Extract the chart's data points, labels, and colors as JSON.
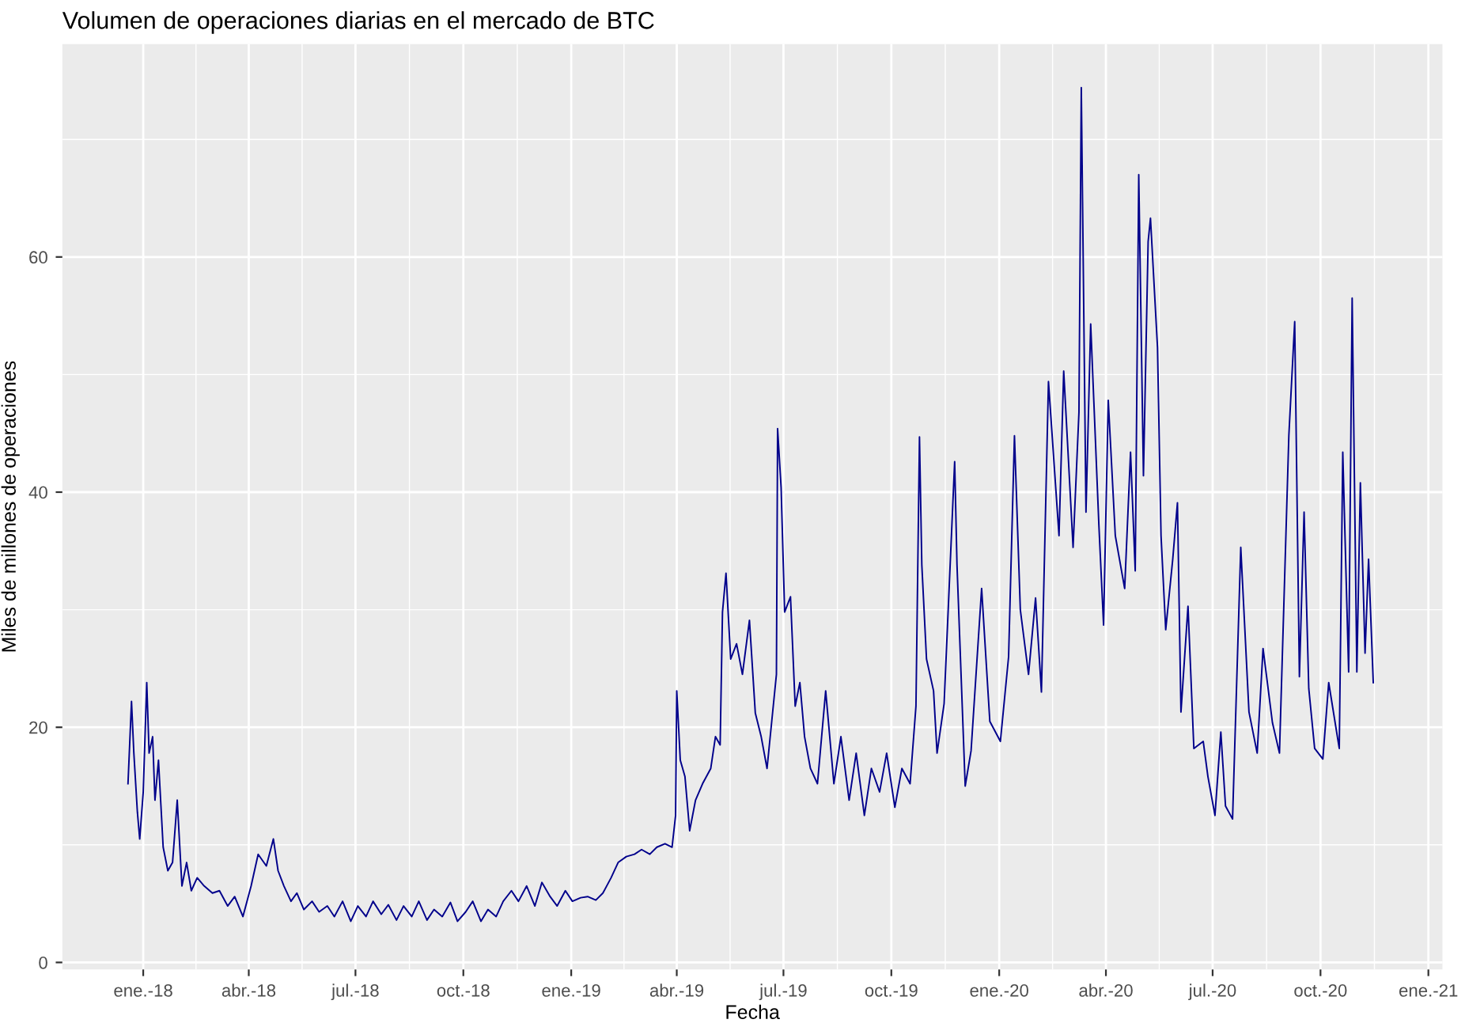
{
  "chart_data": {
    "type": "line",
    "title": "Volumen de operaciones diarias en el mercado de BTC",
    "xlabel": "Fecha",
    "ylabel": "Miles de millones de operaciones",
    "x": [
      "2017-12-19",
      "2017-12-22",
      "2017-12-24",
      "2017-12-27",
      "2017-12-29",
      "2018-01-01",
      "2018-01-04",
      "2018-01-06",
      "2018-01-09",
      "2018-01-11",
      "2018-01-14",
      "2018-01-18",
      "2018-01-22",
      "2018-01-26",
      "2018-01-30",
      "2018-02-03",
      "2018-02-07",
      "2018-02-11",
      "2018-02-16",
      "2018-02-22",
      "2018-03-01",
      "2018-03-07",
      "2018-03-14",
      "2018-03-20",
      "2018-03-27",
      "2018-04-03",
      "2018-04-09",
      "2018-04-16",
      "2018-04-22",
      "2018-04-26",
      "2018-05-01",
      "2018-05-07",
      "2018-05-12",
      "2018-05-18",
      "2018-05-25",
      "2018-05-31",
      "2018-06-07",
      "2018-06-13",
      "2018-06-20",
      "2018-06-27",
      "2018-07-03",
      "2018-07-10",
      "2018-07-16",
      "2018-07-23",
      "2018-07-29",
      "2018-08-05",
      "2018-08-11",
      "2018-08-18",
      "2018-08-24",
      "2018-08-31",
      "2018-09-06",
      "2018-09-13",
      "2018-09-20",
      "2018-09-26",
      "2018-10-03",
      "2018-10-09",
      "2018-10-16",
      "2018-10-22",
      "2018-10-29",
      "2018-11-04",
      "2018-11-11",
      "2018-11-17",
      "2018-11-24",
      "2018-12-01",
      "2018-12-07",
      "2018-12-14",
      "2018-12-20",
      "2018-12-27",
      "2019-01-02",
      "2019-01-09",
      "2019-01-15",
      "2019-01-22",
      "2019-01-28",
      "2019-02-04",
      "2019-02-10",
      "2019-02-17",
      "2019-02-24",
      "2019-03-02",
      "2019-03-09",
      "2019-03-15",
      "2019-03-22",
      "2019-03-28",
      "2019-03-31",
      "2019-04-01",
      "2019-04-04",
      "2019-04-08",
      "2019-04-12",
      "2019-04-17",
      "2019-04-23",
      "2019-04-30",
      "2019-05-04",
      "2019-05-08",
      "2019-05-10",
      "2019-05-13",
      "2019-05-17",
      "2019-05-22",
      "2019-05-27",
      "2019-06-02",
      "2019-06-07",
      "2019-06-12",
      "2019-06-17",
      "2019-06-21",
      "2019-06-25",
      "2019-06-26",
      "2019-06-29",
      "2019-07-02",
      "2019-07-07",
      "2019-07-11",
      "2019-07-15",
      "2019-07-19",
      "2019-07-24",
      "2019-07-30",
      "2019-08-06",
      "2019-08-13",
      "2019-08-19",
      "2019-08-26",
      "2019-09-01",
      "2019-09-08",
      "2019-09-14",
      "2019-09-21",
      "2019-09-27",
      "2019-10-04",
      "2019-10-10",
      "2019-10-17",
      "2019-10-22",
      "2019-10-25",
      "2019-10-27",
      "2019-10-31",
      "2019-11-06",
      "2019-11-09",
      "2019-11-15",
      "2019-11-24",
      "2019-11-26",
      "2019-12-03",
      "2019-12-08",
      "2019-12-17",
      "2019-12-24",
      "2020-01-02",
      "2020-01-09",
      "2020-01-14",
      "2020-01-19",
      "2020-01-26",
      "2020-02-01",
      "2020-02-06",
      "2020-02-12",
      "2020-02-21",
      "2020-02-25",
      "2020-03-04",
      "2020-03-09",
      "2020-03-11",
      "2020-03-15",
      "2020-03-19",
      "2020-03-26",
      "2020-03-30",
      "2020-04-03",
      "2020-04-09",
      "2020-04-17",
      "2020-04-22",
      "2020-04-26",
      "2020-04-29",
      "2020-05-03",
      "2020-05-07",
      "2020-05-09",
      "2020-05-15",
      "2020-05-18",
      "2020-05-22",
      "2020-05-28",
      "2020-06-01",
      "2020-06-04",
      "2020-06-10",
      "2020-06-15",
      "2020-06-23",
      "2020-06-27",
      "2020-07-03",
      "2020-07-08",
      "2020-07-12",
      "2020-07-18",
      "2020-07-25",
      "2020-08-01",
      "2020-08-08",
      "2020-08-13",
      "2020-08-21",
      "2020-08-27",
      "2020-09-04",
      "2020-09-09",
      "2020-09-13",
      "2020-09-17",
      "2020-09-21",
      "2020-09-26",
      "2020-10-03",
      "2020-10-08",
      "2020-10-17",
      "2020-10-20",
      "2020-10-25",
      "2020-10-28",
      "2020-11-01",
      "2020-11-04",
      "2020-11-08",
      "2020-11-11",
      "2020-11-15"
    ],
    "series": [
      {
        "color": "#00008b",
        "values": [
          15.2,
          22.2,
          17.8,
          12.8,
          10.5,
          14.5,
          23.8,
          17.8,
          19.2,
          13.8,
          17.2,
          9.8,
          7.8,
          8.5,
          13.8,
          6.5,
          8.5,
          6.1,
          7.2,
          6.5,
          5.9,
          6.1,
          4.8,
          5.6,
          3.9,
          6.5,
          9.2,
          8.2,
          10.5,
          7.8,
          6.5,
          5.2,
          5.9,
          4.5,
          5.2,
          4.3,
          4.8,
          3.9,
          5.2,
          3.5,
          4.8,
          3.9,
          5.2,
          4.1,
          4.9,
          3.6,
          4.8,
          3.9,
          5.2,
          3.6,
          4.5,
          3.9,
          5.1,
          3.5,
          4.3,
          5.2,
          3.5,
          4.5,
          3.9,
          5.2,
          6.1,
          5.2,
          6.5,
          4.8,
          6.8,
          5.6,
          4.8,
          6.1,
          5.2,
          5.5,
          5.6,
          5.3,
          5.9,
          7.2,
          8.5,
          9.0,
          9.2,
          9.6,
          9.2,
          9.8,
          10.1,
          9.8,
          12.5,
          23.1,
          17.2,
          15.8,
          11.2,
          13.8,
          15.2,
          16.5,
          19.2,
          18.5,
          29.8,
          33.1,
          25.8,
          27.1,
          24.5,
          29.1,
          21.2,
          19.2,
          16.5,
          20.5,
          24.5,
          45.4,
          40.4,
          29.8,
          31.1,
          21.8,
          23.8,
          19.2,
          16.5,
          15.2,
          23.1,
          15.2,
          19.2,
          13.8,
          17.8,
          12.5,
          16.5,
          14.5,
          17.8,
          13.2,
          16.5,
          15.2,
          21.8,
          44.7,
          33.8,
          25.8,
          23.1,
          17.8,
          22.0,
          42.6,
          33.8,
          15.0,
          18.0,
          31.8,
          20.5,
          18.8,
          26.0,
          44.8,
          30.0,
          24.5,
          31.0,
          23.0,
          49.4,
          36.3,
          50.3,
          35.3,
          46.8,
          74.4,
          38.3,
          54.3,
          37.2,
          28.7,
          47.8,
          36.3,
          31.8,
          43.4,
          33.3,
          67.0,
          41.4,
          61.3,
          63.3,
          52.3,
          36.3,
          28.3,
          34.3,
          39.1,
          21.3,
          30.3,
          18.2,
          18.8,
          15.8,
          12.5,
          19.6,
          13.3,
          12.2,
          35.3,
          21.3,
          17.8,
          26.7,
          20.4,
          17.8,
          44.8,
          54.5,
          24.3,
          38.3,
          23.3,
          18.2,
          17.3,
          23.8,
          18.2,
          43.4,
          24.7,
          56.5,
          24.7,
          40.8,
          26.3,
          34.3,
          23.8
        ]
      }
    ],
    "xlim": [
      "2017-10-24",
      "2021-01-13"
    ],
    "xticks": [
      {
        "value": "2018-01-01",
        "label": "ene.-18"
      },
      {
        "value": "2018-04-01",
        "label": "abr.-18"
      },
      {
        "value": "2018-07-01",
        "label": "jul.-18"
      },
      {
        "value": "2018-10-01",
        "label": "oct.-18"
      },
      {
        "value": "2019-01-01",
        "label": "ene.-19"
      },
      {
        "value": "2019-04-01",
        "label": "abr.-19"
      },
      {
        "value": "2019-07-01",
        "label": "jul.-19"
      },
      {
        "value": "2019-10-01",
        "label": "oct.-19"
      },
      {
        "value": "2020-01-01",
        "label": "ene.-20"
      },
      {
        "value": "2020-04-01",
        "label": "abr.-20"
      },
      {
        "value": "2020-07-01",
        "label": "jul.-20"
      },
      {
        "value": "2020-10-01",
        "label": "oct.-20"
      },
      {
        "value": "2021-01-01",
        "label": "ene.-21"
      }
    ],
    "ylim": [
      -0.6,
      78.1
    ],
    "yticks": [
      0,
      20,
      40,
      60
    ],
    "grid": true,
    "marker": "none",
    "line_style": "solid"
  }
}
